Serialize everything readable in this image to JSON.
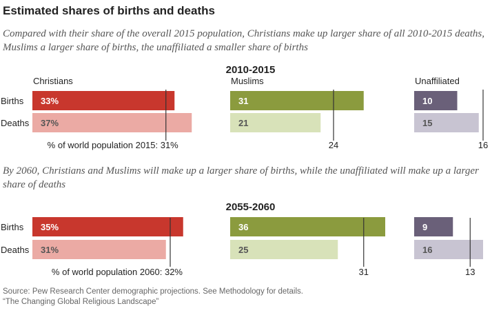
{
  "title": "Estimated shares of births and deaths",
  "source": {
    "line1": "Source: Pew Research Center demographic projections. See Methodology for details.",
    "line2": "“The Changing Global Religious Landscape”"
  },
  "chart_data": [
    {
      "type": "bar",
      "subtitle": "Compared with their share of the overall 2015 population, Christians make up larger share of all 2010-2015 deaths, Muslims a larger share of births, the unaffiliated a smaller share of births",
      "period": "2010-2015",
      "row_labels": [
        "Births",
        "Deaths"
      ],
      "groups": [
        {
          "name": "Christians",
          "births": 33,
          "deaths": 37,
          "births_label": "33%",
          "deaths_label": "37%",
          "population": 31,
          "population_label": "% of world population 2015: 31%",
          "colors": {
            "births": "#c8372d",
            "deaths": "#ebaaa4"
          }
        },
        {
          "name": "Muslims",
          "births": 31,
          "deaths": 21,
          "births_label": "31",
          "deaths_label": "21",
          "population": 24,
          "population_label": "24",
          "colors": {
            "births": "#8b9b3e",
            "deaths": "#d8e2b9"
          }
        },
        {
          "name": "Unaffiliated",
          "births": 10,
          "deaths": 15,
          "births_label": "10",
          "deaths_label": "15",
          "population": 16,
          "population_label": "16",
          "colors": {
            "births": "#6a6079",
            "deaths": "#c8c4d2"
          }
        }
      ]
    },
    {
      "type": "bar",
      "subtitle": "By 2060, Christians and Muslims will make up a larger share of births, while the unaffiliated will make up a larger share of deaths",
      "period": "2055-2060",
      "row_labels": [
        "Births",
        "Deaths"
      ],
      "groups": [
        {
          "name": "Christians",
          "births": 35,
          "deaths": 31,
          "births_label": "35%",
          "deaths_label": "31%",
          "population": 32,
          "population_label": "% of world population 2060: 32%",
          "colors": {
            "births": "#c8372d",
            "deaths": "#ebaaa4"
          }
        },
        {
          "name": "Muslims",
          "births": 36,
          "deaths": 25,
          "births_label": "36",
          "deaths_label": "25",
          "population": 31,
          "population_label": "31",
          "colors": {
            "births": "#8b9b3e",
            "deaths": "#d8e2b9"
          }
        },
        {
          "name": "Unaffiliated",
          "births": 9,
          "deaths": 16,
          "births_label": "9",
          "deaths_label": "16",
          "population": 13,
          "population_label": "13",
          "colors": {
            "births": "#6a6079",
            "deaths": "#c8c4d2"
          }
        }
      ]
    }
  ]
}
